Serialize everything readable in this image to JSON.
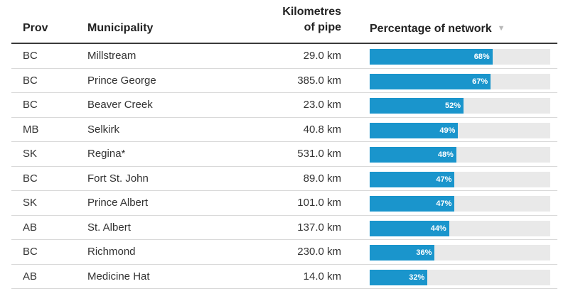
{
  "header": {
    "prov": "Prov",
    "municipality": "Municipality",
    "km_line1": "Kilometres",
    "km_line2": "of pipe",
    "percentage": "Percentage of network",
    "sort_icon": "sort-descending-icon"
  },
  "colors": {
    "bar": "#1a95cc",
    "track": "#e9e9e9",
    "header_rule": "#3a3a3a"
  },
  "chart_data": {
    "type": "table",
    "columns": [
      "Prov",
      "Municipality",
      "Kilometres of pipe",
      "Percentage of network"
    ],
    "rows": [
      {
        "prov": "BC",
        "municipality": "Millstream",
        "km": "29.0 km",
        "pct": 68,
        "pct_label": "68%"
      },
      {
        "prov": "BC",
        "municipality": "Prince George",
        "km": "385.0 km",
        "pct": 67,
        "pct_label": "67%"
      },
      {
        "prov": "BC",
        "municipality": "Beaver Creek",
        "km": "23.0 km",
        "pct": 52,
        "pct_label": "52%"
      },
      {
        "prov": "MB",
        "municipality": "Selkirk",
        "km": "40.8 km",
        "pct": 49,
        "pct_label": "49%"
      },
      {
        "prov": "SK",
        "municipality": "Regina*",
        "km": "531.0 km",
        "pct": 48,
        "pct_label": "48%"
      },
      {
        "prov": "BC",
        "municipality": "Fort St. John",
        "km": "89.0 km",
        "pct": 47,
        "pct_label": "47%"
      },
      {
        "prov": "SK",
        "municipality": "Prince Albert",
        "km": "101.0 km",
        "pct": 47,
        "pct_label": "47%"
      },
      {
        "prov": "AB",
        "municipality": "St. Albert",
        "km": "137.0 km",
        "pct": 44,
        "pct_label": "44%"
      },
      {
        "prov": "BC",
        "municipality": "Richmond",
        "km": "230.0 km",
        "pct": 36,
        "pct_label": "36%"
      },
      {
        "prov": "AB",
        "municipality": "Medicine Hat",
        "km": "14.0 km",
        "pct": 32,
        "pct_label": "32%"
      }
    ],
    "bar_max": 100
  }
}
